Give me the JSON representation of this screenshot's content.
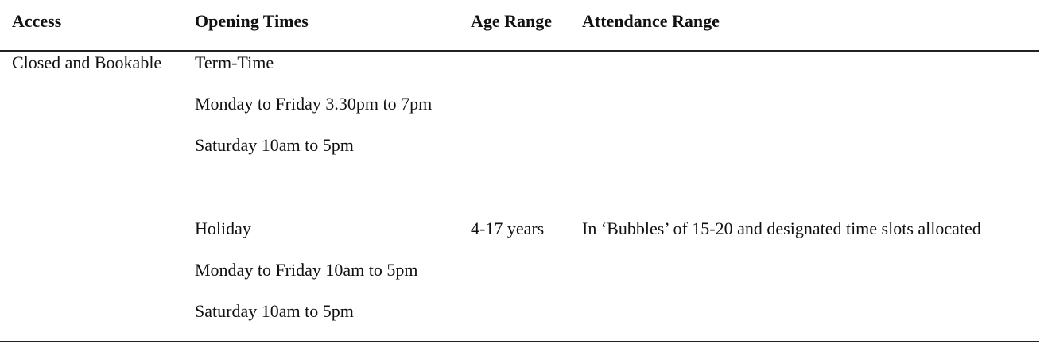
{
  "table": {
    "headers": {
      "access": "Access",
      "opening_times": "Opening Times",
      "age_range": "Age Range",
      "attendance_range": "Attendance Range"
    },
    "row": {
      "access": "Closed and Bookable",
      "term_time": {
        "label": "Term-Time",
        "weekday": "Monday to Friday 3.30pm to 7pm",
        "saturday": "Saturday 10am to 5pm"
      },
      "holiday": {
        "label": "Holiday",
        "weekday": "Monday to Friday 10am to 5pm",
        "saturday": "Saturday 10am to 5pm"
      },
      "age_range": "4-17 years",
      "attendance_range": "In ‘Bubbles’ of 15-20 and designated time slots allocated"
    }
  }
}
